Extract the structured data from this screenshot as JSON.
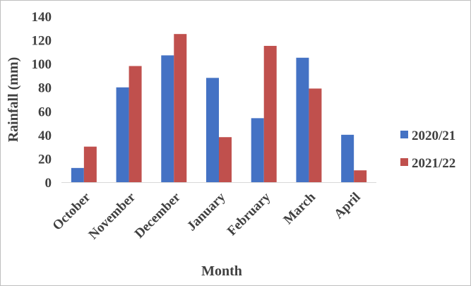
{
  "chart_data": {
    "type": "bar",
    "categories": [
      "October",
      "November",
      "December",
      "January",
      "February",
      "March",
      "April"
    ],
    "series": [
      {
        "name": "2020/21",
        "color": "#4472c4",
        "values": [
          12,
          80,
          107,
          88,
          54,
          105,
          40
        ]
      },
      {
        "name": "2021/22",
        "color": "#c0504d",
        "values": [
          30,
          98,
          125,
          38,
          115,
          79,
          10
        ]
      }
    ],
    "xlabel": "Month",
    "ylabel": "Rainfall (mm)",
    "ylim": [
      0,
      140
    ],
    "yticks": [
      0,
      20,
      40,
      60,
      80,
      100,
      120,
      140
    ],
    "grid": false,
    "legend_position": "right"
  }
}
